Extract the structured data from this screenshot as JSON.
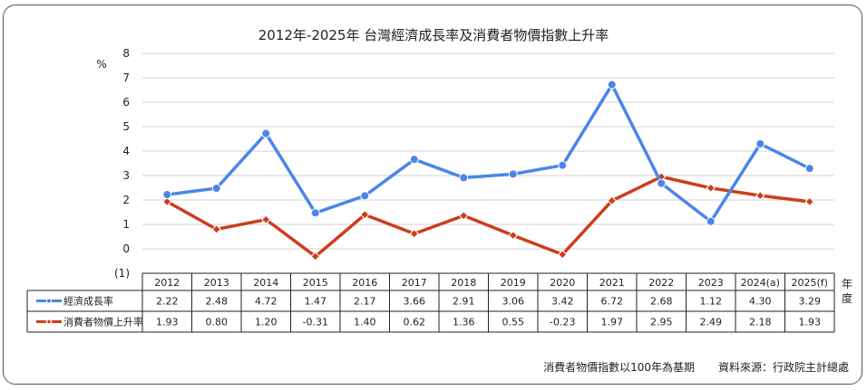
{
  "chart_data": {
    "type": "line",
    "title": "2012年-2025年 台灣經濟成長率及消費者物價指數上升率",
    "ylabel": "%",
    "ylim": [
      -1,
      8
    ],
    "yticks": [
      "8",
      "7",
      "6",
      "5",
      "4",
      "3",
      "2",
      "1",
      "0",
      "(1)"
    ],
    "xlabel_chars": [
      "年",
      "度"
    ],
    "categories": [
      "2012",
      "2013",
      "2014",
      "2015",
      "2016",
      "2017",
      "2018",
      "2019",
      "2020",
      "2021",
      "2022",
      "2023",
      "2024(a)",
      "2025(f)"
    ],
    "grid": true,
    "series": [
      {
        "name": "經濟成長率",
        "color": "#4a86e8",
        "marker": "circle",
        "values": [
          2.22,
          2.48,
          4.72,
          1.47,
          2.17,
          3.66,
          2.91,
          3.06,
          3.42,
          6.72,
          2.68,
          1.12,
          4.3,
          3.29
        ],
        "labels": [
          "2.22",
          "2.48",
          "4.72",
          "1.47",
          "2.17",
          "3.66",
          "2.91",
          "3.06",
          "3.42",
          "6.72",
          "2.68",
          "1.12",
          "4.30",
          "3.29"
        ]
      },
      {
        "name": "消費者物價上升率",
        "color": "#cc3d1c",
        "marker": "diamond",
        "values": [
          1.93,
          0.8,
          1.2,
          -0.31,
          1.4,
          0.62,
          1.36,
          0.55,
          -0.23,
          1.97,
          2.95,
          2.49,
          2.18,
          1.93
        ],
        "labels": [
          "1.93",
          "0.80",
          "1.20",
          "-0.31",
          "1.40",
          "0.62",
          "1.36",
          "0.55",
          "-0.23",
          "1.97",
          "2.95",
          "2.49",
          "2.18",
          "1.93"
        ]
      }
    ]
  },
  "footer": {
    "note": "消費者物價指數以100年為基期",
    "source": "資料來源：行政院主計總處"
  }
}
